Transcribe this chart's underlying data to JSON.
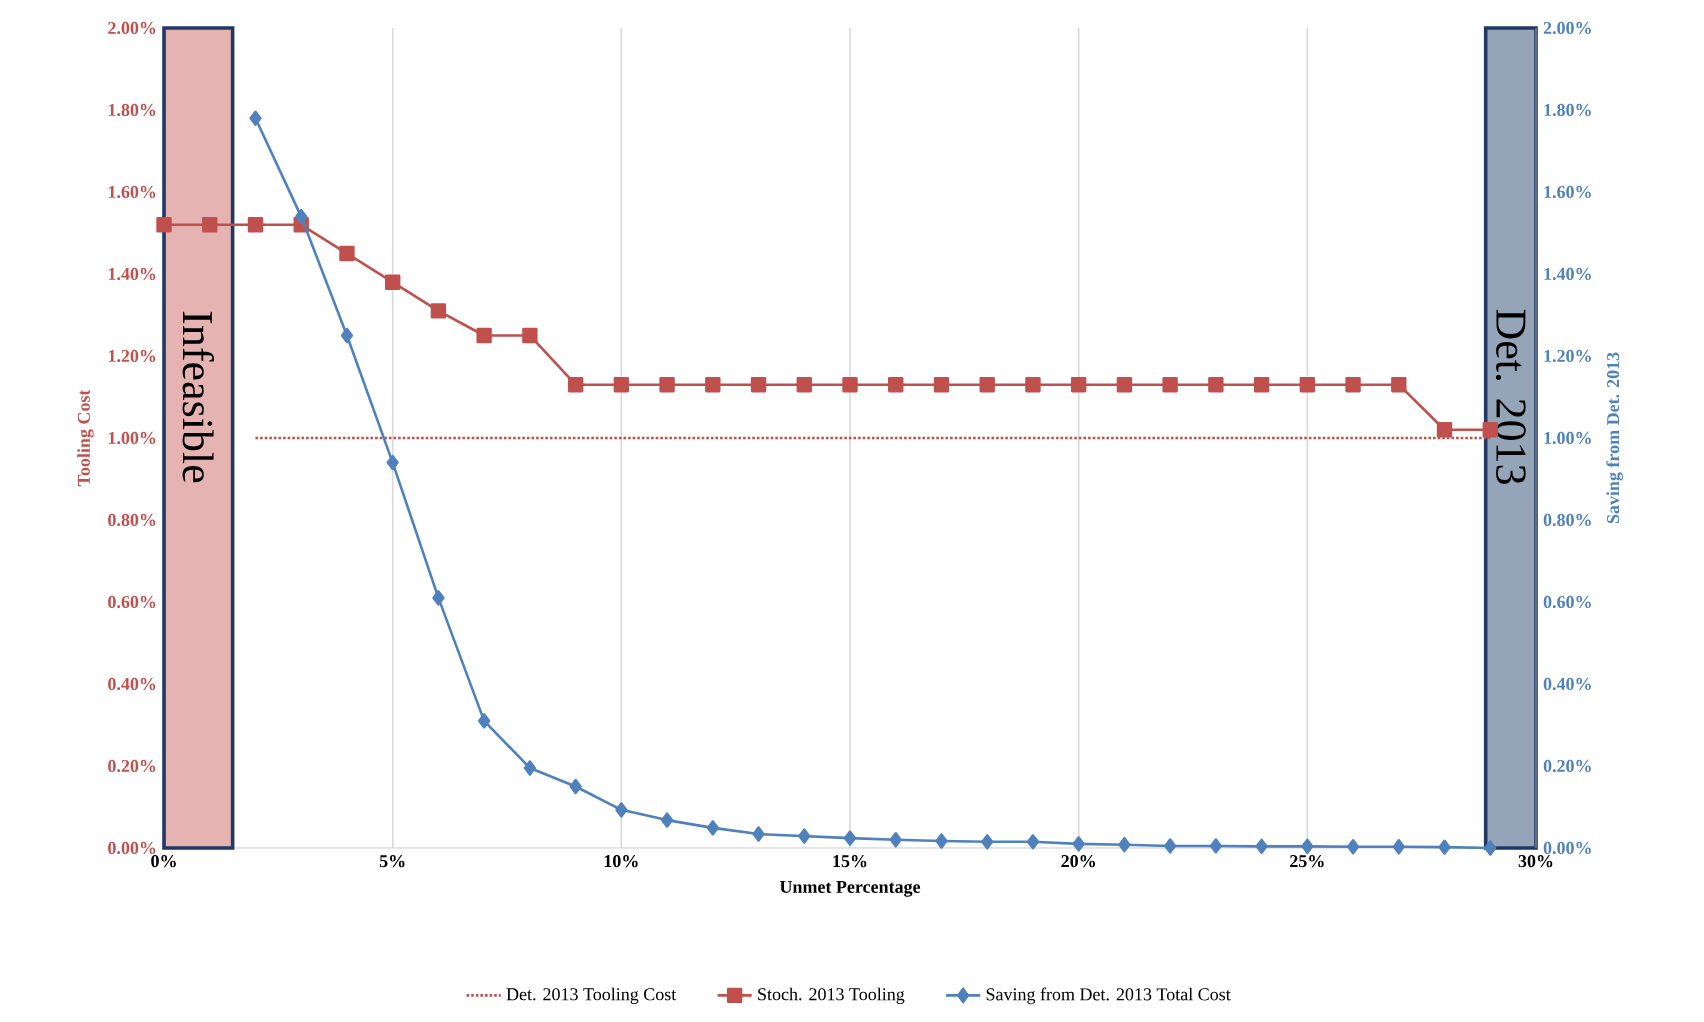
{
  "chart_data": {
    "type": "line",
    "xlabel": "Unmet Percentage",
    "ylabel": "Tooling Cost",
    "y2label": "Saving from Det. 2013",
    "x": [
      0,
      1,
      2,
      3,
      4,
      5,
      6,
      7,
      8,
      9,
      10,
      11,
      12,
      13,
      14,
      15,
      16,
      17,
      18,
      19,
      20,
      21,
      22,
      23,
      24,
      25,
      26,
      27,
      28,
      29
    ],
    "series": [
      {
        "name": "Det. 2013 Tooling Cost",
        "color": "#c0504d",
        "x": [
          2,
          29
        ],
        "values": [
          1.0,
          1.0
        ],
        "line_style": "dotted",
        "marker": "none"
      },
      {
        "name": "Stoch. 2013 Tooling",
        "color": "#c0504d",
        "marker": "square",
        "values": [
          1.52,
          1.52,
          1.52,
          1.52,
          1.45,
          1.38,
          1.31,
          1.25,
          1.25,
          1.13,
          1.13,
          1.13,
          1.13,
          1.13,
          1.13,
          1.13,
          1.13,
          1.13,
          1.13,
          1.13,
          1.13,
          1.13,
          1.13,
          1.13,
          1.13,
          1.13,
          1.13,
          1.13,
          1.02,
          1.02
        ]
      },
      {
        "name": "Saving from Det. 2013 Total Cost",
        "color": "#4f81bd",
        "marker": "diamond",
        "axis": "y2",
        "x": [
          2,
          3,
          4,
          5,
          6,
          7,
          8,
          9,
          10,
          11,
          12,
          13,
          14,
          15,
          16,
          17,
          18,
          19,
          20,
          21,
          22,
          23,
          24,
          25,
          26,
          27,
          28,
          29
        ],
        "values": [
          1.78,
          1.54,
          1.25,
          0.94,
          0.61,
          0.31,
          0.195,
          0.15,
          0.093,
          0.068,
          0.049,
          0.034,
          0.029,
          0.024,
          0.02,
          0.017,
          0.015,
          0.015,
          0.01,
          0.008,
          0.005,
          0.005,
          0.004,
          0.004,
          0.003,
          0.003,
          0.002,
          0.0
        ]
      }
    ],
    "xlim": [
      0,
      30
    ],
    "xticks": [
      {
        "value": 0,
        "label": "0%"
      },
      {
        "value": 5,
        "label": "5%"
      },
      {
        "value": 10,
        "label": "10%"
      },
      {
        "value": 15,
        "label": "15%"
      },
      {
        "value": 20,
        "label": "20%"
      },
      {
        "value": 25,
        "label": "25%"
      },
      {
        "value": 30,
        "label": "30%"
      }
    ],
    "ylim": [
      0,
      2
    ],
    "yticks": [
      {
        "value": 0,
        "label": "0.00%"
      },
      {
        "value": 0.2,
        "label": "0.20%"
      },
      {
        "value": 0.4,
        "label": "0.40%"
      },
      {
        "value": 0.6,
        "label": "0.60%"
      },
      {
        "value": 0.8,
        "label": "0.80%"
      },
      {
        "value": 1.0,
        "label": "1.00%"
      },
      {
        "value": 1.2,
        "label": "1.20%"
      },
      {
        "value": 1.4,
        "label": "1.40%"
      },
      {
        "value": 1.6,
        "label": "1.60%"
      },
      {
        "value": 1.8,
        "label": "1.80%"
      },
      {
        "value": 2.0,
        "label": "2.00%"
      }
    ],
    "y2lim": [
      0,
      2
    ],
    "y2ticks": [
      {
        "value": 0,
        "label": "0.00%"
      },
      {
        "value": 0.2,
        "label": "0.20%"
      },
      {
        "value": 0.4,
        "label": "0.40%"
      },
      {
        "value": 0.6,
        "label": "0.60%"
      },
      {
        "value": 0.8,
        "label": "0.80%"
      },
      {
        "value": 1.0,
        "label": "1.00%"
      },
      {
        "value": 1.2,
        "label": "1.20%"
      },
      {
        "value": 1.4,
        "label": "1.40%"
      },
      {
        "value": 1.6,
        "label": "1.60%"
      },
      {
        "value": 1.8,
        "label": "1.80%"
      },
      {
        "value": 2.0,
        "label": "2.00%"
      }
    ],
    "bands": [
      {
        "axis": "x",
        "from": 0,
        "to": 1.5,
        "label": "Infeasible",
        "color": "#e6b3b3"
      },
      {
        "axis": "x",
        "from": 28.9,
        "to": 30,
        "label": "Det. 2013",
        "color": "#95a5b8"
      }
    ],
    "grid": true,
    "legend": "bottom"
  }
}
